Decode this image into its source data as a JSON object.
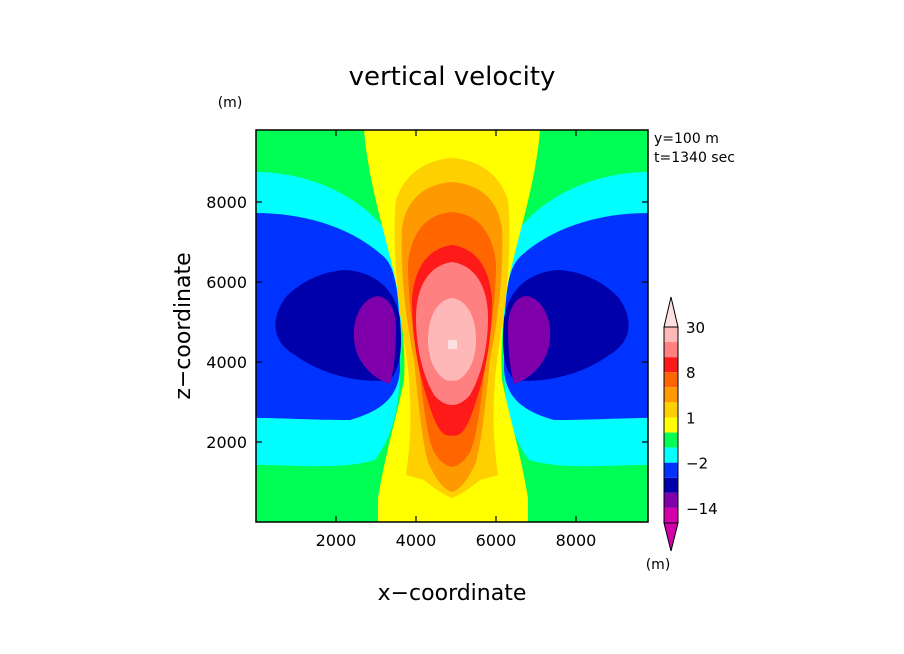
{
  "chart_data": {
    "type": "heatmap",
    "title": "vertical velocity",
    "xlabel": "x−coordinate",
    "ylabel": "z−coordinate",
    "y_unit": "(m)",
    "xlim": [
      0,
      9800
    ],
    "ylim": [
      0,
      9800
    ],
    "x_ticks": [
      2000,
      4000,
      6000,
      8000
    ],
    "y_ticks": [
      2000,
      4000,
      6000,
      8000
    ],
    "x_tick_labels": [
      "2000",
      "4000",
      "6000",
      "8000"
    ],
    "y_tick_labels": [
      "2000",
      "4000",
      "6000",
      "8000"
    ],
    "annotations": [
      "y=100 m",
      "t=1340 sec"
    ],
    "colorbar": {
      "unit": "(m)",
      "tick_labels": [
        {
          "label": "30",
          "value": 30
        },
        {
          "label": "8",
          "value": 8
        },
        {
          "label": "1",
          "value": 1
        },
        {
          "label": "−2",
          "value": -2
        },
        {
          "label": "−14",
          "value": -14
        }
      ],
      "levels": [
        {
          "min": -20,
          "max": -14,
          "color": "#d400aa"
        },
        {
          "min": -14,
          "max": -8,
          "color": "#7f00aa"
        },
        {
          "min": -8,
          "max": -4,
          "color": "#0000aa"
        },
        {
          "min": -4,
          "max": -2,
          "color": "#0033ff"
        },
        {
          "min": -2,
          "max": -1,
          "color": "#00ffff"
        },
        {
          "min": -1,
          "max": 0,
          "color": "#00ff55"
        },
        {
          "min": 0,
          "max": 1,
          "color": "#ffff00"
        },
        {
          "min": 1,
          "max": 2,
          "color": "#ffd000"
        },
        {
          "min": 2,
          "max": 4,
          "color": "#ff9900"
        },
        {
          "min": 4,
          "max": 8,
          "color": "#ff6600"
        },
        {
          "min": 8,
          "max": 16,
          "color": "#ff1a1a"
        },
        {
          "min": 16,
          "max": 24,
          "color": "#ff8080"
        },
        {
          "min": 24,
          "max": 30,
          "color": "#ffb8b8"
        }
      ]
    },
    "contour_regions": [
      {
        "value_range": [
          -1,
          0
        ],
        "color": "#00ff55",
        "note": "background"
      },
      {
        "value_range": [
          -2,
          -1
        ],
        "color": "#00ffff",
        "side": "both",
        "z_range": [
          1600,
          8800
        ]
      },
      {
        "value_range": [
          -4,
          -2
        ],
        "color": "#0033ff",
        "side": "both",
        "z_range": [
          2600,
          7900
        ]
      },
      {
        "value_range": [
          -8,
          -4
        ],
        "color": "#0000aa",
        "side": "both",
        "z_range": [
          3500,
          6300
        ]
      },
      {
        "value_range": [
          -14,
          -8
        ],
        "color": "#7f00aa",
        "side": "both",
        "z_range": [
          4100,
          5700
        ]
      },
      {
        "value_range": [
          0,
          1
        ],
        "color": "#ffff00",
        "x_range": [
          3200,
          6900
        ]
      },
      {
        "value_range": [
          1,
          2
        ],
        "color": "#ffd000",
        "x_range": [
          3600,
          6400
        ]
      },
      {
        "value_range": [
          2,
          4
        ],
        "color": "#ff9900",
        "x_range": [
          3800,
          6200
        ]
      },
      {
        "value_range": [
          4,
          8
        ],
        "color": "#ff6600",
        "x_range": [
          4000,
          6000
        ]
      },
      {
        "value_range": [
          8,
          16
        ],
        "color": "#ff1a1a",
        "x_range": [
          4100,
          5900
        ]
      },
      {
        "value_range": [
          16,
          24
        ],
        "color": "#ff8080",
        "x_range": [
          4300,
          5800
        ]
      },
      {
        "value_range": [
          24,
          30
        ],
        "color": "#ffb8b8",
        "x_range": [
          4600,
          5500
        ]
      }
    ]
  }
}
